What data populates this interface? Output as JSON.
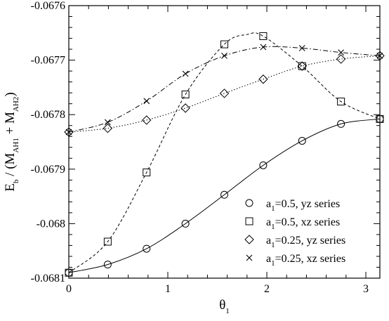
{
  "chart_data": {
    "type": "line",
    "xlabel": {
      "main": "θ",
      "sub": "1"
    },
    "ylabel": {
      "parts": [
        {
          "t": "E",
          "s": false
        },
        {
          "t": "b",
          "s": true
        },
        {
          "t": " / (M",
          "s": false
        },
        {
          "t": "AH1",
          "s": true
        },
        {
          "t": " + M",
          "s": false
        },
        {
          "t": "AH2",
          "s": true
        },
        {
          "t": ")",
          "s": false
        }
      ]
    },
    "xlim": [
      0,
      3.1416
    ],
    "ylim": [
      -0.0681,
      -0.0676
    ],
    "xticks": [
      0,
      1,
      2,
      3
    ],
    "xtick_labels": [
      "0",
      "1",
      "2",
      "3"
    ],
    "yticks": [
      -0.0681,
      -0.068,
      -0.0679,
      -0.0678,
      -0.0677,
      -0.0676
    ],
    "ytick_labels": [
      "-0.0681",
      "-0.068",
      "-0.0679",
      "-0.0678",
      "-0.0677",
      "-0.0676"
    ],
    "grid": false,
    "legend_position": "bottom-right",
    "series": [
      {
        "label_main": "a",
        "label_sub": "1",
        "label_rest": "=0.5, yz series",
        "marker": "circle",
        "dash": "",
        "x": [
          0,
          0.3927,
          0.7854,
          1.1781,
          1.5708,
          1.9635,
          2.3562,
          2.7489,
          3.1416
        ],
        "y": [
          -0.06809,
          -0.068075,
          -0.068046,
          -0.068,
          -0.067947,
          -0.067893,
          -0.067848,
          -0.067817,
          -0.067808
        ],
        "curve": [
          [
            0,
            -0.06809
          ],
          [
            0.3927,
            -0.068075
          ],
          [
            0.7854,
            -0.068046
          ],
          [
            1.1781,
            -0.068
          ],
          [
            1.5708,
            -0.067947
          ],
          [
            1.9635,
            -0.067893
          ],
          [
            2.3562,
            -0.067848
          ],
          [
            2.7489,
            -0.067817
          ],
          [
            3.1416,
            -0.067808
          ]
        ]
      },
      {
        "label_main": "a",
        "label_sub": "1",
        "label_rest": "=0.5, xz series",
        "marker": "square",
        "dash": "4,3",
        "x": [
          0,
          0.3927,
          0.7854,
          1.1781,
          1.5708,
          1.9635,
          2.3562,
          2.7489,
          3.1416
        ],
        "y": [
          -0.06809,
          -0.068033,
          -0.067906,
          -0.067763,
          -0.067671,
          -0.067656,
          -0.067711,
          -0.067776,
          -0.067808
        ],
        "curve": [
          [
            0,
            -0.06809
          ],
          [
            0.3927,
            -0.068033
          ],
          [
            0.7854,
            -0.067906
          ],
          [
            1.1781,
            -0.067763
          ],
          [
            1.5708,
            -0.067671
          ],
          [
            1.8,
            -0.067653
          ],
          [
            1.9635,
            -0.067656
          ],
          [
            2.3562,
            -0.067711
          ],
          [
            2.7489,
            -0.067776
          ],
          [
            3.1416,
            -0.067808
          ]
        ]
      },
      {
        "label_main": "a",
        "label_sub": "1",
        "label_rest": "=0.25, yz series",
        "marker": "diamond",
        "dash": "1.5,2.5",
        "x": [
          0,
          0.3927,
          0.7854,
          1.1781,
          1.5708,
          1.9635,
          2.3562,
          2.7489,
          3.1416
        ],
        "y": [
          -0.067832,
          -0.067825,
          -0.06781,
          -0.067788,
          -0.067761,
          -0.067735,
          -0.067711,
          -0.067698,
          -0.067692
        ],
        "curve": [
          [
            0,
            -0.067832
          ],
          [
            0.3927,
            -0.067825
          ],
          [
            0.7854,
            -0.06781
          ],
          [
            1.1781,
            -0.067788
          ],
          [
            1.5708,
            -0.067761
          ],
          [
            1.9635,
            -0.067735
          ],
          [
            2.3562,
            -0.067711
          ],
          [
            2.7489,
            -0.067698
          ],
          [
            3.1416,
            -0.067692
          ]
        ]
      },
      {
        "label_main": "a",
        "label_sub": "1",
        "label_rest": "=0.25, xz series",
        "marker": "cross",
        "dash": "7,3,1.5,3",
        "x": [
          0,
          0.3927,
          0.7854,
          1.1781,
          1.5708,
          1.9635,
          2.3562,
          2.7489,
          3.1416
        ],
        "y": [
          -0.067832,
          -0.067814,
          -0.067775,
          -0.067725,
          -0.067692,
          -0.067676,
          -0.067678,
          -0.067686,
          -0.067692
        ],
        "curve": [
          [
            0,
            -0.067832
          ],
          [
            0.3927,
            -0.067814
          ],
          [
            0.7854,
            -0.067775
          ],
          [
            1.1781,
            -0.067725
          ],
          [
            1.5708,
            -0.067692
          ],
          [
            1.9635,
            -0.067676
          ],
          [
            2.3562,
            -0.067678
          ],
          [
            2.7489,
            -0.067686
          ],
          [
            3.1416,
            -0.067692
          ]
        ]
      }
    ]
  }
}
